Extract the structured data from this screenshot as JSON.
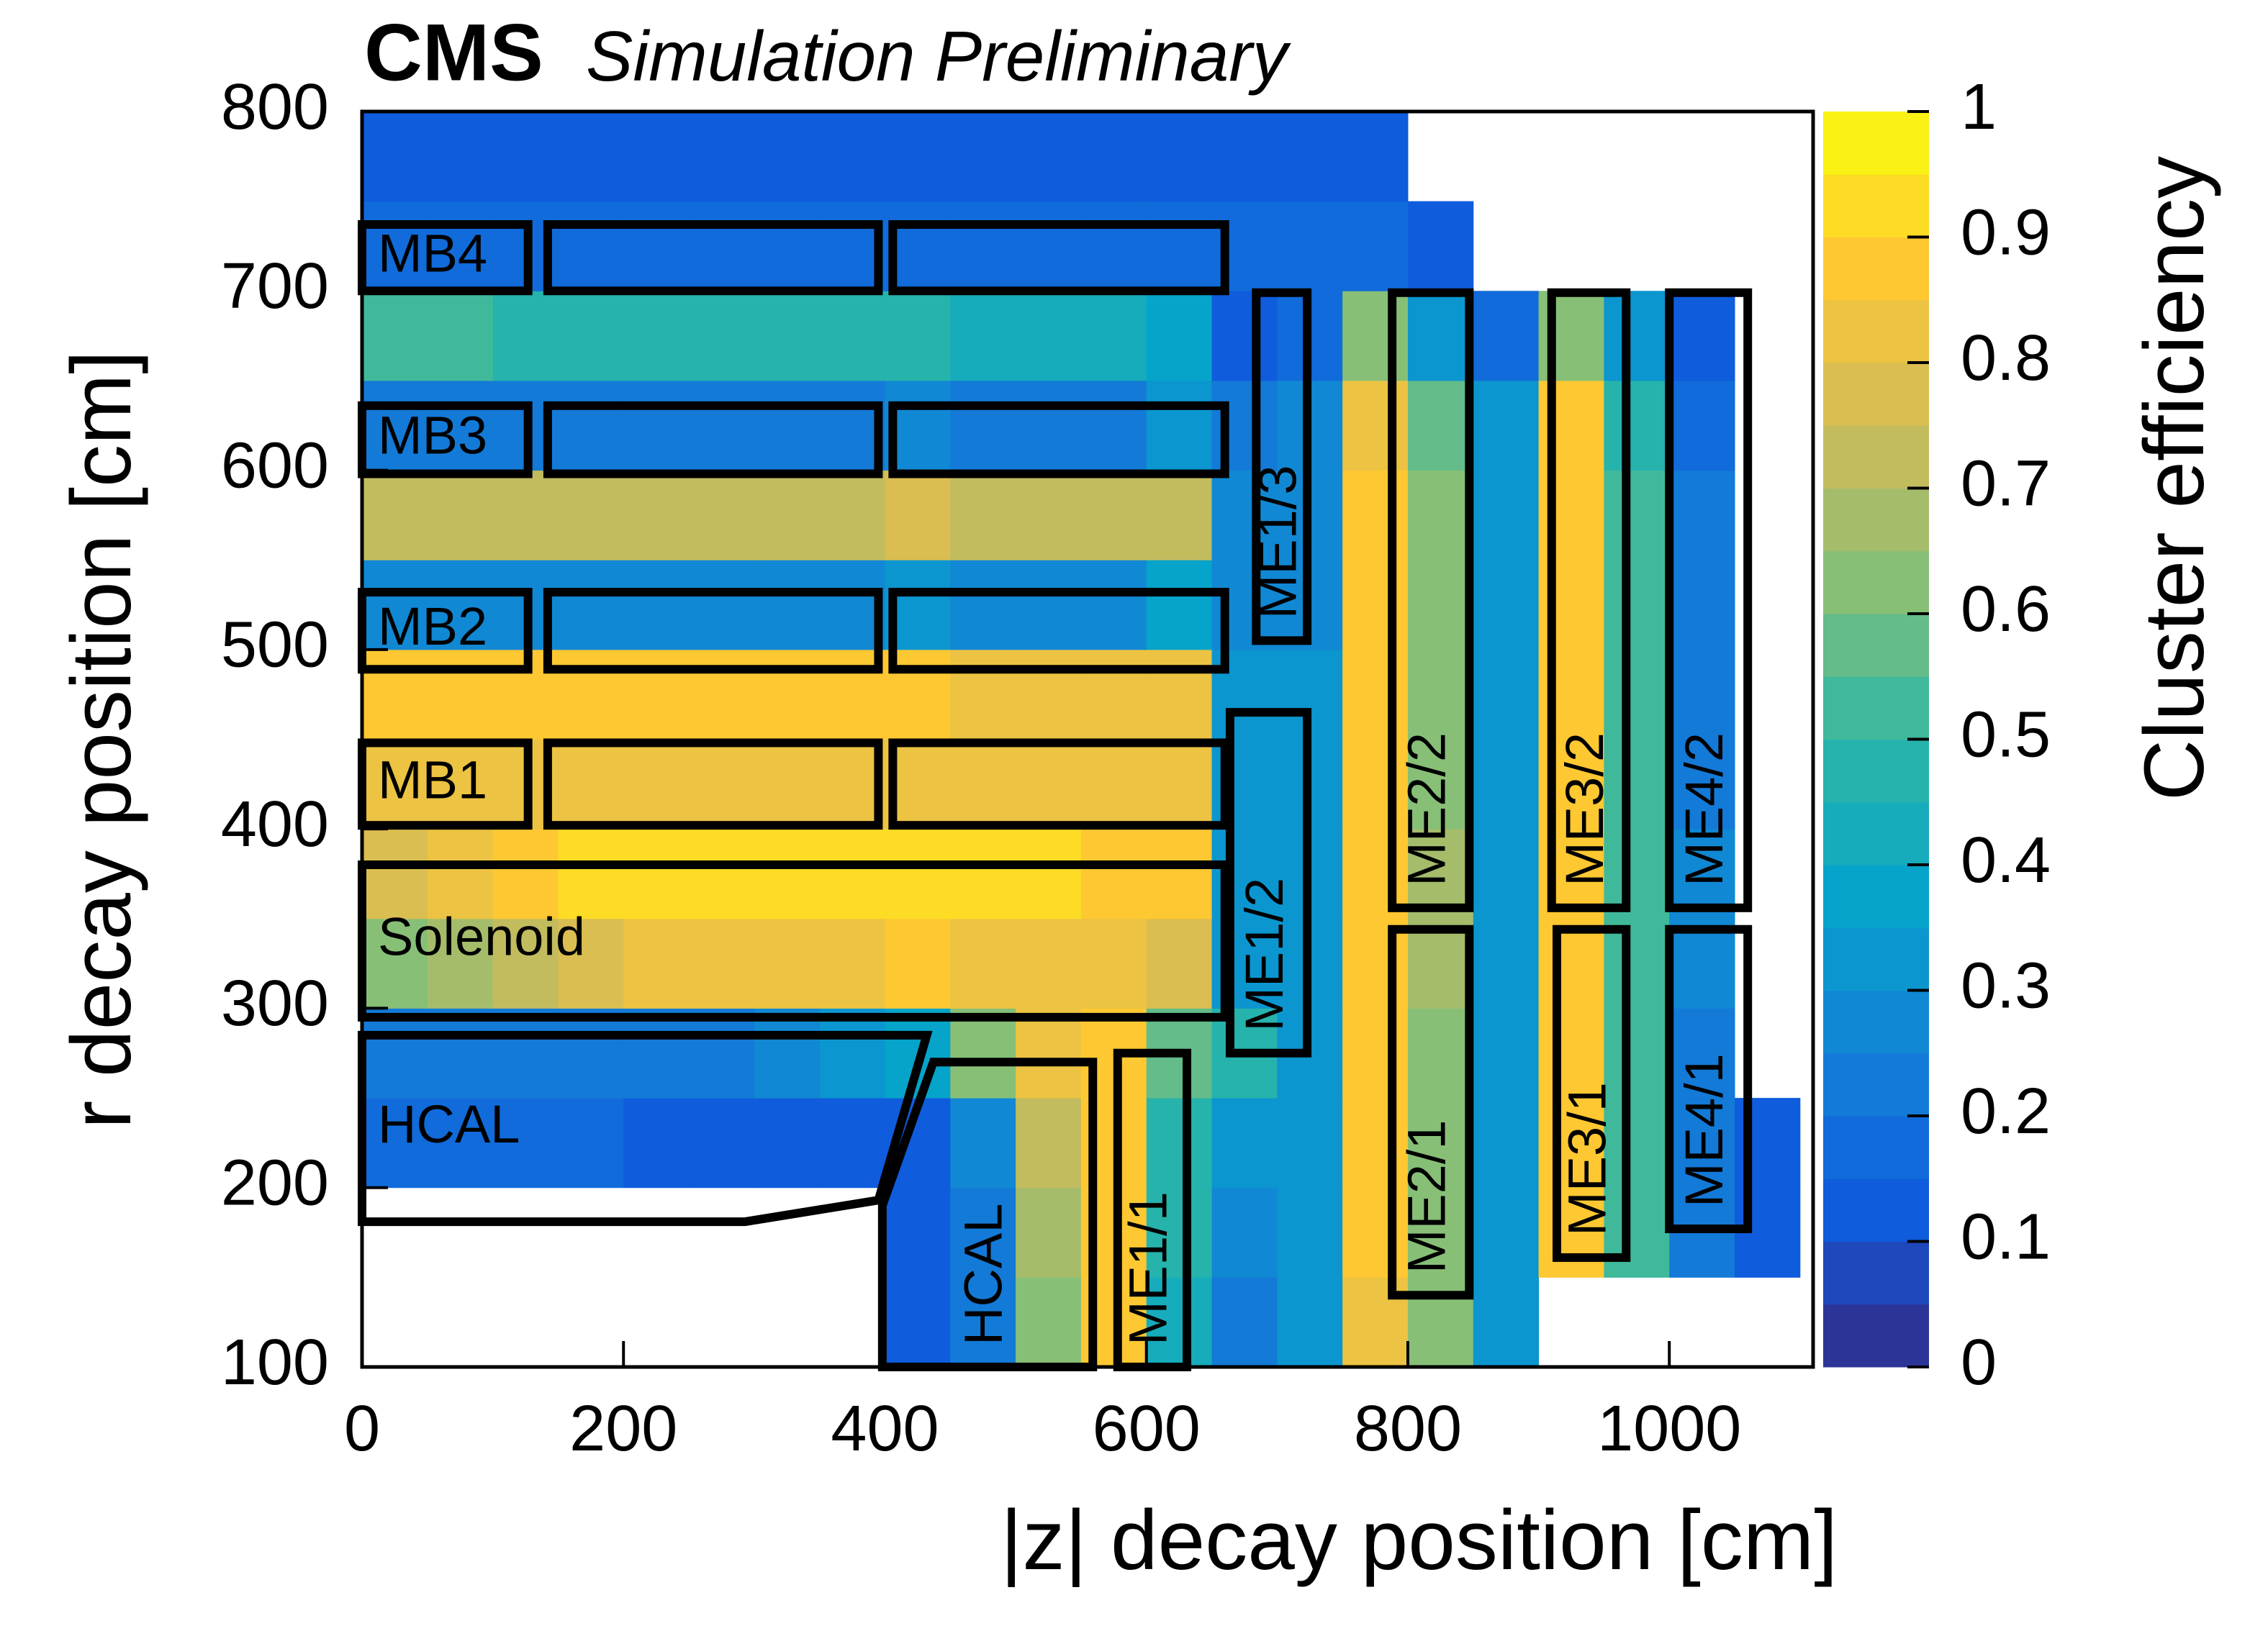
{
  "chart_data": {
    "type": "heatmap",
    "title": "CMS",
    "subtitle": "Simulation Preliminary",
    "x_label": "|z| decay position [cm]",
    "y_label": "r decay position [cm]",
    "z_label": "Cluster efficiency",
    "xlim": [
      0,
      1110
    ],
    "ylim": [
      100,
      800
    ],
    "zlim": [
      0,
      1
    ],
    "xticks": [
      0,
      200,
      400,
      600,
      800,
      1000
    ],
    "yticks": [
      100,
      200,
      300,
      400,
      500,
      600,
      700,
      800
    ],
    "zticks": [
      0,
      0.1,
      0.2,
      0.3,
      0.4,
      0.5,
      0.6,
      0.7,
      0.8,
      0.9,
      1
    ],
    "contours": 20,
    "colormap": [
      "#352a87",
      "#0f5cdd",
      "#1481d6",
      "#06a4ca",
      "#2eb7a4",
      "#87bf77",
      "#d1bb59",
      "#fec832",
      "#f9fb0e"
    ],
    "x_bins": [
      0,
      50,
      100,
      150,
      200,
      250,
      300,
      350,
      400,
      450,
      500,
      550,
      600,
      650,
      700,
      750,
      800,
      850,
      900,
      950,
      1000,
      1050,
      1100
    ],
    "y_bins": [
      100,
      150,
      200,
      250,
      300,
      350,
      400,
      450,
      500,
      550,
      600,
      650,
      700,
      750,
      800
    ],
    "values": [
      [
        null,
        null,
        null,
        null,
        null,
        null,
        null,
        null,
        0.12,
        0.2,
        0.6,
        0.85,
        0.4,
        0.2,
        0.3,
        0.8,
        0.6,
        0.3,
        null,
        null,
        null,
        null
      ],
      [
        null,
        null,
        null,
        null,
        null,
        null,
        null,
        null,
        0.12,
        0.2,
        0.65,
        0.85,
        0.45,
        0.25,
        0.3,
        0.85,
        0.6,
        0.3,
        0.85,
        0.5,
        0.2,
        0.1
      ],
      [
        0.15,
        0.15,
        0.15,
        0.15,
        0.12,
        0.1,
        0.1,
        0.1,
        0.12,
        0.25,
        0.7,
        0.85,
        0.45,
        0.3,
        0.3,
        0.85,
        0.6,
        0.3,
        0.85,
        0.5,
        0.2,
        0.1
      ],
      [
        0.2,
        0.2,
        0.2,
        0.2,
        0.2,
        0.22,
        0.25,
        0.3,
        0.35,
        0.6,
        0.8,
        0.85,
        0.55,
        0.45,
        0.3,
        0.85,
        0.6,
        0.3,
        0.85,
        0.5,
        0.2,
        null
      ],
      [
        0.6,
        0.65,
        0.7,
        0.75,
        0.8,
        0.8,
        0.8,
        0.8,
        0.85,
        0.8,
        0.8,
        0.8,
        0.75,
        0.3,
        0.3,
        0.85,
        0.65,
        0.3,
        0.85,
        0.5,
        0.25,
        null
      ],
      [
        0.75,
        0.8,
        0.85,
        0.9,
        0.9,
        0.9,
        0.9,
        0.9,
        0.9,
        0.9,
        0.9,
        0.85,
        0.85,
        0.3,
        0.3,
        0.85,
        0.65,
        0.3,
        0.85,
        0.5,
        0.25,
        null
      ],
      [
        0.8,
        0.8,
        0.8,
        0.8,
        0.8,
        0.8,
        0.8,
        0.8,
        0.8,
        0.8,
        0.8,
        0.8,
        0.8,
        0.3,
        0.3,
        0.85,
        0.6,
        0.3,
        0.85,
        0.5,
        0.2,
        null
      ],
      [
        0.85,
        0.85,
        0.85,
        0.85,
        0.85,
        0.85,
        0.85,
        0.85,
        0.85,
        0.8,
        0.8,
        0.8,
        0.8,
        0.3,
        0.3,
        0.85,
        0.6,
        0.3,
        0.85,
        0.5,
        0.2,
        null
      ],
      [
        0.25,
        0.25,
        0.25,
        0.25,
        0.25,
        0.25,
        0.25,
        0.25,
        0.3,
        0.25,
        0.25,
        0.25,
        0.35,
        0.25,
        0.25,
        0.85,
        0.6,
        0.3,
        0.85,
        0.5,
        0.2,
        null
      ],
      [
        0.7,
        0.7,
        0.7,
        0.7,
        0.7,
        0.7,
        0.7,
        0.7,
        0.75,
        0.7,
        0.7,
        0.7,
        0.7,
        0.25,
        0.25,
        0.85,
        0.6,
        0.3,
        0.85,
        0.5,
        0.2,
        null
      ],
      [
        0.2,
        0.2,
        0.2,
        0.2,
        0.2,
        0.2,
        0.2,
        0.2,
        0.25,
        0.2,
        0.2,
        0.2,
        0.3,
        0.2,
        0.25,
        0.8,
        0.55,
        0.3,
        0.85,
        0.45,
        0.15,
        null
      ],
      [
        0.5,
        0.5,
        0.45,
        0.45,
        0.45,
        0.45,
        0.45,
        0.45,
        0.45,
        0.4,
        0.4,
        0.4,
        0.35,
        0.1,
        0.15,
        0.6,
        0.3,
        0.15,
        0.6,
        0.3,
        0.1,
        null
      ],
      [
        0.15,
        0.15,
        0.15,
        0.15,
        0.15,
        0.15,
        0.15,
        0.15,
        0.15,
        0.15,
        0.15,
        0.15,
        0.15,
        0.15,
        0.15,
        0.15,
        0.1,
        null,
        null,
        null,
        null,
        null
      ],
      [
        0.1,
        0.1,
        0.1,
        0.1,
        0.1,
        0.1,
        0.1,
        0.1,
        0.1,
        0.1,
        0.1,
        0.1,
        0.1,
        0.1,
        0.1,
        0.1,
        null,
        null,
        null,
        null,
        null,
        null
      ]
    ],
    "regions": [
      {
        "label": "MB4",
        "boxes": [
          [
            0,
            127,
            700,
            737
          ],
          [
            142,
            395,
            700,
            737
          ],
          [
            406,
            660,
            700,
            737
          ]
        ]
      },
      {
        "label": "MB3",
        "boxes": [
          [
            0,
            127,
            598,
            636
          ],
          [
            142,
            395,
            598,
            636
          ],
          [
            406,
            660,
            598,
            636
          ]
        ]
      },
      {
        "label": "MB2",
        "boxes": [
          [
            0,
            127,
            489,
            532
          ],
          [
            142,
            395,
            489,
            532
          ],
          [
            406,
            660,
            489,
            532
          ]
        ]
      },
      {
        "label": "MB1",
        "boxes": [
          [
            0,
            127,
            402,
            448
          ],
          [
            142,
            395,
            402,
            448
          ],
          [
            406,
            660,
            402,
            448
          ]
        ]
      },
      {
        "label": "Solenoid",
        "boxes": [
          [
            0,
            660,
            295,
            380
          ]
        ]
      },
      {
        "label": "HCAL",
        "polygon": [
          [
            0,
            181
          ],
          [
            0,
            285
          ],
          [
            432,
            285
          ],
          [
            395,
            193
          ],
          [
            293,
            181
          ]
        ]
      },
      {
        "label": "HCAL",
        "polygon": [
          [
            398,
            100
          ],
          [
            398,
            190
          ],
          [
            437,
            270
          ],
          [
            559,
            270
          ],
          [
            559,
            100
          ]
        ]
      },
      {
        "label": "ME1/1",
        "boxes": [
          [
            578,
            631,
            100,
            275
          ]
        ]
      },
      {
        "label": "ME1/2",
        "boxes": [
          [
            664,
            723,
            275,
            465
          ]
        ]
      },
      {
        "label": "ME1/3",
        "boxes": [
          [
            684,
            723,
            505,
            699
          ]
        ]
      },
      {
        "label": "ME2/2",
        "boxes": [
          [
            788,
            847,
            356,
            699
          ]
        ]
      },
      {
        "label": "ME2/1",
        "boxes": [
          [
            788,
            847,
            140,
            344
          ]
        ]
      },
      {
        "label": "ME3/2",
        "boxes": [
          [
            910,
            967,
            356,
            699
          ]
        ]
      },
      {
        "label": "ME3/1",
        "boxes": [
          [
            914,
            967,
            161,
            344
          ]
        ]
      },
      {
        "label": "ME4/2",
        "boxes": [
          [
            1000,
            1060,
            356,
            699
          ]
        ]
      },
      {
        "label": "ME4/1",
        "boxes": [
          [
            1000,
            1060,
            177,
            344
          ]
        ]
      }
    ]
  }
}
